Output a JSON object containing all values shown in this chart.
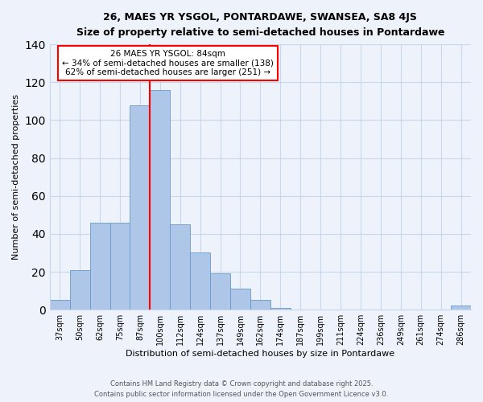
{
  "title": "26, MAES YR YSGOL, PONTARDAWE, SWANSEA, SA8 4JS",
  "subtitle": "Size of property relative to semi-detached houses in Pontardawe",
  "xlabel": "Distribution of semi-detached houses by size in Pontardawe",
  "ylabel": "Number of semi-detached properties",
  "bin_labels": [
    "37sqm",
    "50sqm",
    "62sqm",
    "75sqm",
    "87sqm",
    "100sqm",
    "112sqm",
    "124sqm",
    "137sqm",
    "149sqm",
    "162sqm",
    "174sqm",
    "187sqm",
    "199sqm",
    "211sqm",
    "224sqm",
    "236sqm",
    "249sqm",
    "261sqm",
    "274sqm",
    "286sqm"
  ],
  "bar_values": [
    5,
    21,
    46,
    46,
    108,
    116,
    45,
    30,
    19,
    11,
    5,
    1,
    0,
    0,
    0,
    0,
    0,
    0,
    0,
    0,
    2
  ],
  "bar_color": "#aec6e8",
  "bar_edge_color": "#6699cc",
  "bg_color": "#eef3fb",
  "grid_color": "#c8d8ea",
  "vline_x_index": 4,
  "vline_color": "red",
  "annotation_title": "26 MAES YR YSGOL: 84sqm",
  "annotation_line1": "← 34% of semi-detached houses are smaller (138)",
  "annotation_line2": "62% of semi-detached houses are larger (251) →",
  "annotation_box_color": "red",
  "ylim": [
    0,
    140
  ],
  "yticks": [
    0,
    20,
    40,
    60,
    80,
    100,
    120,
    140
  ],
  "footer1": "Contains HM Land Registry data © Crown copyright and database right 2025.",
  "footer2": "Contains public sector information licensed under the Open Government Licence v3.0."
}
